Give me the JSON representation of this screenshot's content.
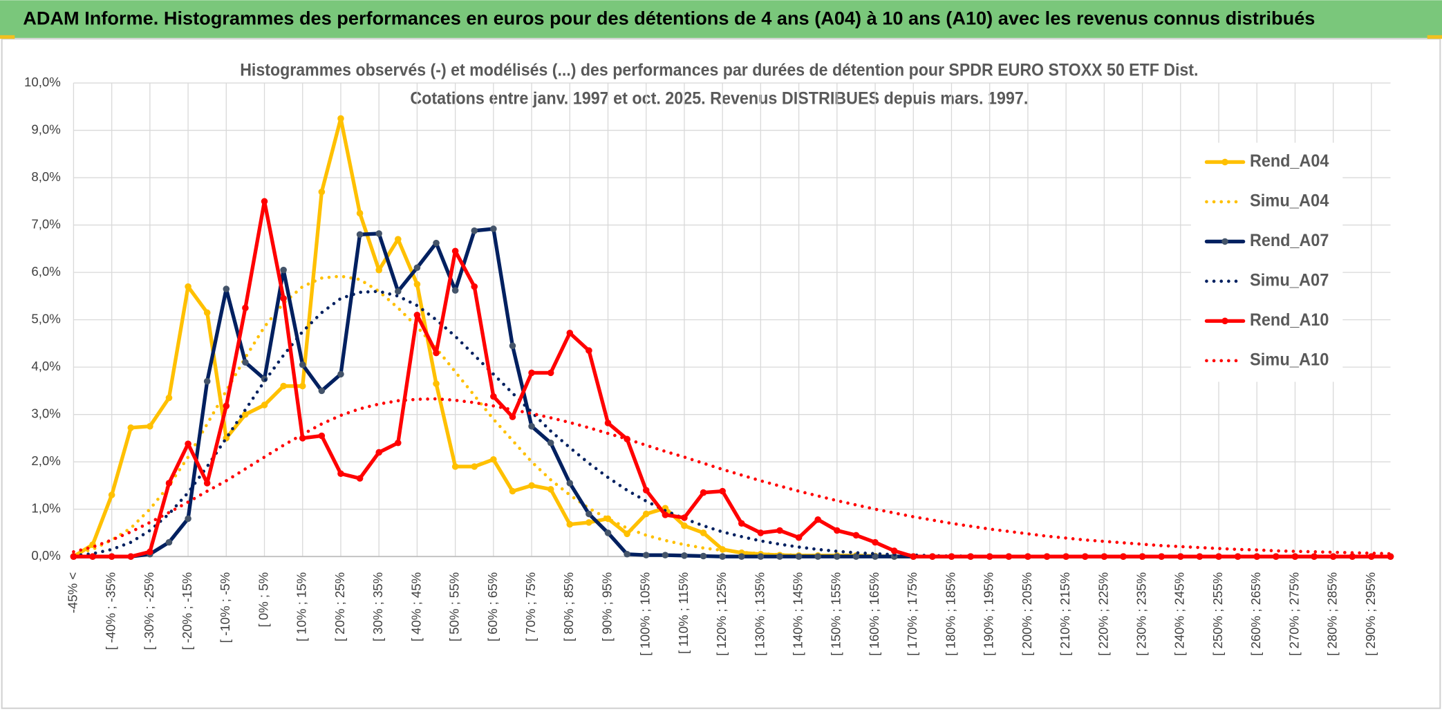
{
  "header": {
    "title": "ADAM Informe. Histogrammes des performances en euros pour des détentions de 4 ans (A04) à 10 ans (A10) avec les revenus connus distribués"
  },
  "chart_data": {
    "type": "line",
    "title": "Histogrammes observés (-) et modélisés (...) des performances par durées de détention pour SPDR EURO STOXX 50 ETF Dist.",
    "subtitle": "Cotations entre janv. 1997 et oct. 2025. Revenus DISTRIBUES depuis mars. 1997.",
    "categories": [
      "-45% <",
      null,
      "[ -40% ; -35%",
      null,
      "[ -30% ; -25%",
      null,
      "[ -20% ; -15%",
      null,
      "[ -10% ; -5%",
      null,
      "[ 0% ; 5%",
      null,
      "[ 10% ; 15%",
      null,
      "[ 20% ; 25%",
      null,
      "[ 30% ; 35%",
      null,
      "[ 40% ; 45%",
      null,
      "[ 50% ; 55%",
      null,
      "[ 60% ; 65%",
      null,
      "[ 70% ; 75%",
      null,
      "[ 80% ; 85%",
      null,
      "[ 90% ; 95%",
      null,
      "[ 100% ; 105%",
      null,
      "[ 110% ; 115%",
      null,
      "[ 120% ; 125%",
      null,
      "[ 130% ; 135%",
      null,
      "[ 140% ; 145%",
      null,
      "[ 150% ; 155%",
      null,
      "[ 160% ; 165%",
      null,
      "[ 170% ; 175%",
      null,
      "[ 180% ; 185%",
      null,
      "[ 190% ; 195%",
      null,
      "[ 200% ; 205%",
      null,
      "[ 210% ; 215%",
      null,
      "[ 220% ; 225%",
      null,
      "[ 230% ; 235%",
      null,
      "[ 240% ; 245%",
      null,
      "[ 250% ; 255%",
      null,
      "[ 260% ; 265%",
      null,
      "[ 270% ; 275%",
      null,
      "[ 280% ; 285%",
      null,
      "[ 290% ; 295%",
      null
    ],
    "ylim": [
      0,
      10
    ],
    "yticks": [
      {
        "value": 0,
        "label": "0,0%"
      },
      {
        "value": 1,
        "label": "1,0%"
      },
      {
        "value": 2,
        "label": "2,0%"
      },
      {
        "value": 3,
        "label": "3,0%"
      },
      {
        "value": 4,
        "label": "4,0%"
      },
      {
        "value": 5,
        "label": "5,0%"
      },
      {
        "value": 6,
        "label": "6,0%"
      },
      {
        "value": 7,
        "label": "7,0%"
      },
      {
        "value": 8,
        "label": "8,0%"
      },
      {
        "value": 9,
        "label": "9,0%"
      },
      {
        "value": 10,
        "label": "10,0%"
      }
    ],
    "grid": true,
    "legend": "right",
    "series": [
      {
        "name": "Rend_A04",
        "color": "#FFC000",
        "line": "solid",
        "markers": true,
        "values": [
          0,
          0.25,
          1.3,
          2.72,
          2.75,
          3.35,
          5.7,
          5.15,
          2.5,
          3.0,
          3.2,
          3.6,
          3.6,
          7.7,
          9.25,
          7.25,
          6.05,
          6.7,
          5.75,
          3.65,
          1.9,
          1.9,
          2.05,
          1.38,
          1.5,
          1.42,
          0.68,
          0.72,
          0.8,
          0.48,
          0.9,
          1.02,
          0.65,
          0.5,
          0.15,
          0.08,
          0.05,
          0.03,
          0.02,
          0.02,
          0.02,
          0.02,
          0.01,
          0,
          0,
          0,
          0,
          0,
          0,
          0,
          0,
          0,
          0,
          0,
          0,
          0,
          0,
          0,
          0,
          0,
          0,
          0,
          0,
          0,
          0,
          0,
          0,
          0,
          0,
          0
        ]
      },
      {
        "name": "Simu_A04",
        "color": "#FFC000",
        "line": "dotted",
        "markers": false,
        "values": [
          0.05,
          0.15,
          0.35,
          0.6,
          1.0,
          1.5,
          2.1,
          2.8,
          3.5,
          4.2,
          4.85,
          5.35,
          5.7,
          5.88,
          5.92,
          5.85,
          5.6,
          5.25,
          4.85,
          4.4,
          3.9,
          3.4,
          2.9,
          2.45,
          2.0,
          1.62,
          1.3,
          1.02,
          0.8,
          0.6,
          0.45,
          0.34,
          0.25,
          0.18,
          0.13,
          0.09,
          0.06,
          0.04,
          0.03,
          0.02,
          0.01,
          0,
          0,
          0,
          0,
          0,
          0,
          0,
          0,
          0,
          0,
          0,
          0,
          0,
          0,
          0,
          0,
          0,
          0,
          0,
          0,
          0,
          0,
          0,
          0,
          0,
          0,
          0,
          0,
          0
        ]
      },
      {
        "name": "Rend_A07",
        "color": "#002060",
        "line": "solid",
        "markers": true,
        "values": [
          0,
          0,
          0,
          0,
          0.05,
          0.3,
          0.8,
          3.7,
          5.65,
          4.1,
          3.75,
          6.05,
          4.05,
          3.5,
          3.85,
          6.8,
          6.82,
          5.6,
          6.1,
          6.62,
          5.62,
          6.88,
          6.92,
          4.45,
          2.75,
          2.4,
          1.55,
          0.9,
          0.5,
          0.05,
          0.03,
          0.03,
          0.02,
          0.01,
          0,
          0,
          0,
          0,
          0,
          0,
          0,
          0,
          0,
          0,
          0,
          0,
          0,
          0,
          0,
          0,
          0,
          0,
          0,
          0,
          0,
          0,
          0,
          0,
          0,
          0,
          0,
          0,
          0,
          0,
          0,
          0,
          0,
          0,
          0,
          0
        ]
      },
      {
        "name": "Simu_A07",
        "color": "#002060",
        "line": "dotted",
        "markers": false,
        "values": [
          0.02,
          0.06,
          0.15,
          0.3,
          0.55,
          0.9,
          1.35,
          1.9,
          2.5,
          3.1,
          3.7,
          4.25,
          4.75,
          5.15,
          5.45,
          5.58,
          5.6,
          5.5,
          5.3,
          5.0,
          4.65,
          4.25,
          3.85,
          3.45,
          3.05,
          2.65,
          2.3,
          1.97,
          1.67,
          1.4,
          1.17,
          0.97,
          0.8,
          0.65,
          0.52,
          0.42,
          0.33,
          0.26,
          0.2,
          0.15,
          0.11,
          0.08,
          0.06,
          0.04,
          0.03,
          0.02,
          0.01,
          0.01,
          0,
          0,
          0,
          0,
          0,
          0,
          0,
          0,
          0,
          0,
          0,
          0,
          0,
          0,
          0,
          0,
          0,
          0,
          0,
          0,
          0,
          0
        ]
      },
      {
        "name": "Rend_A10",
        "color": "#FF0000",
        "line": "solid",
        "markers": true,
        "values": [
          0,
          0,
          0,
          0,
          0.1,
          1.55,
          2.38,
          1.55,
          3.18,
          5.25,
          7.5,
          5.45,
          2.5,
          2.55,
          1.75,
          1.65,
          2.2,
          2.4,
          5.1,
          4.3,
          6.45,
          5.7,
          3.38,
          2.95,
          3.88,
          3.88,
          4.72,
          4.35,
          2.82,
          2.48,
          1.4,
          0.88,
          0.82,
          1.35,
          1.38,
          0.7,
          0.5,
          0.55,
          0.4,
          0.78,
          0.55,
          0.45,
          0.3,
          0.12,
          0,
          0,
          0,
          0,
          0,
          0,
          0,
          0,
          0,
          0,
          0,
          0,
          0,
          0,
          0,
          0,
          0,
          0,
          0,
          0,
          0,
          0,
          0,
          0,
          0,
          0
        ]
      },
      {
        "name": "Simu_A10",
        "color": "#FF0000",
        "line": "dotted",
        "markers": false,
        "values": [
          0.1,
          0.2,
          0.35,
          0.52,
          0.72,
          0.93,
          1.15,
          1.38,
          1.6,
          1.85,
          2.1,
          2.35,
          2.58,
          2.8,
          2.98,
          3.12,
          3.22,
          3.29,
          3.32,
          3.33,
          3.3,
          3.25,
          3.18,
          3.1,
          3.02,
          2.93,
          2.83,
          2.72,
          2.6,
          2.48,
          2.35,
          2.22,
          2.1,
          1.97,
          1.84,
          1.72,
          1.6,
          1.49,
          1.38,
          1.28,
          1.18,
          1.09,
          1.0,
          0.92,
          0.84,
          0.77,
          0.7,
          0.64,
          0.58,
          0.53,
          0.48,
          0.43,
          0.39,
          0.35,
          0.32,
          0.29,
          0.26,
          0.23,
          0.21,
          0.19,
          0.17,
          0.15,
          0.14,
          0.12,
          0.11,
          0.1,
          0.09,
          0.08,
          0.07,
          0.06
        ]
      }
    ]
  }
}
